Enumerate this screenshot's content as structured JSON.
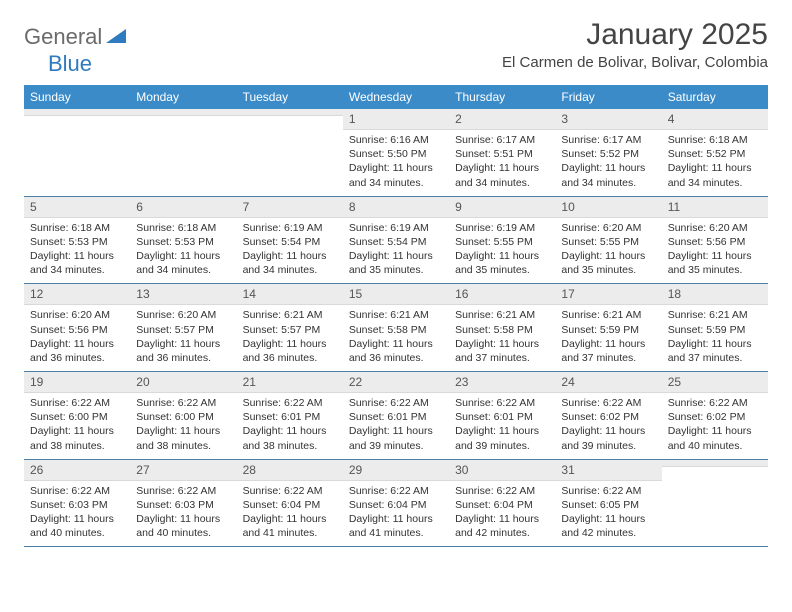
{
  "logo": {
    "part1": "General",
    "part2": "Blue"
  },
  "title": "January 2025",
  "location": "El Carmen de Bolivar, Bolivar, Colombia",
  "colors": {
    "header_bg": "#3b8bc9",
    "header_text": "#ffffff",
    "daynum_bg": "#ececec",
    "border": "#4a7fa8",
    "logo_gray": "#6b6b6b",
    "logo_blue": "#2f7bbf"
  },
  "day_headers": [
    "Sunday",
    "Monday",
    "Tuesday",
    "Wednesday",
    "Thursday",
    "Friday",
    "Saturday"
  ],
  "weeks": [
    [
      {
        "n": "",
        "sr": "",
        "ss": "",
        "dl": ""
      },
      {
        "n": "",
        "sr": "",
        "ss": "",
        "dl": ""
      },
      {
        "n": "",
        "sr": "",
        "ss": "",
        "dl": ""
      },
      {
        "n": "1",
        "sr": "6:16 AM",
        "ss": "5:50 PM",
        "dl": "11 hours and 34 minutes."
      },
      {
        "n": "2",
        "sr": "6:17 AM",
        "ss": "5:51 PM",
        "dl": "11 hours and 34 minutes."
      },
      {
        "n": "3",
        "sr": "6:17 AM",
        "ss": "5:52 PM",
        "dl": "11 hours and 34 minutes."
      },
      {
        "n": "4",
        "sr": "6:18 AM",
        "ss": "5:52 PM",
        "dl": "11 hours and 34 minutes."
      }
    ],
    [
      {
        "n": "5",
        "sr": "6:18 AM",
        "ss": "5:53 PM",
        "dl": "11 hours and 34 minutes."
      },
      {
        "n": "6",
        "sr": "6:18 AM",
        "ss": "5:53 PM",
        "dl": "11 hours and 34 minutes."
      },
      {
        "n": "7",
        "sr": "6:19 AM",
        "ss": "5:54 PM",
        "dl": "11 hours and 34 minutes."
      },
      {
        "n": "8",
        "sr": "6:19 AM",
        "ss": "5:54 PM",
        "dl": "11 hours and 35 minutes."
      },
      {
        "n": "9",
        "sr": "6:19 AM",
        "ss": "5:55 PM",
        "dl": "11 hours and 35 minutes."
      },
      {
        "n": "10",
        "sr": "6:20 AM",
        "ss": "5:55 PM",
        "dl": "11 hours and 35 minutes."
      },
      {
        "n": "11",
        "sr": "6:20 AM",
        "ss": "5:56 PM",
        "dl": "11 hours and 35 minutes."
      }
    ],
    [
      {
        "n": "12",
        "sr": "6:20 AM",
        "ss": "5:56 PM",
        "dl": "11 hours and 36 minutes."
      },
      {
        "n": "13",
        "sr": "6:20 AM",
        "ss": "5:57 PM",
        "dl": "11 hours and 36 minutes."
      },
      {
        "n": "14",
        "sr": "6:21 AM",
        "ss": "5:57 PM",
        "dl": "11 hours and 36 minutes."
      },
      {
        "n": "15",
        "sr": "6:21 AM",
        "ss": "5:58 PM",
        "dl": "11 hours and 36 minutes."
      },
      {
        "n": "16",
        "sr": "6:21 AM",
        "ss": "5:58 PM",
        "dl": "11 hours and 37 minutes."
      },
      {
        "n": "17",
        "sr": "6:21 AM",
        "ss": "5:59 PM",
        "dl": "11 hours and 37 minutes."
      },
      {
        "n": "18",
        "sr": "6:21 AM",
        "ss": "5:59 PM",
        "dl": "11 hours and 37 minutes."
      }
    ],
    [
      {
        "n": "19",
        "sr": "6:22 AM",
        "ss": "6:00 PM",
        "dl": "11 hours and 38 minutes."
      },
      {
        "n": "20",
        "sr": "6:22 AM",
        "ss": "6:00 PM",
        "dl": "11 hours and 38 minutes."
      },
      {
        "n": "21",
        "sr": "6:22 AM",
        "ss": "6:01 PM",
        "dl": "11 hours and 38 minutes."
      },
      {
        "n": "22",
        "sr": "6:22 AM",
        "ss": "6:01 PM",
        "dl": "11 hours and 39 minutes."
      },
      {
        "n": "23",
        "sr": "6:22 AM",
        "ss": "6:01 PM",
        "dl": "11 hours and 39 minutes."
      },
      {
        "n": "24",
        "sr": "6:22 AM",
        "ss": "6:02 PM",
        "dl": "11 hours and 39 minutes."
      },
      {
        "n": "25",
        "sr": "6:22 AM",
        "ss": "6:02 PM",
        "dl": "11 hours and 40 minutes."
      }
    ],
    [
      {
        "n": "26",
        "sr": "6:22 AM",
        "ss": "6:03 PM",
        "dl": "11 hours and 40 minutes."
      },
      {
        "n": "27",
        "sr": "6:22 AM",
        "ss": "6:03 PM",
        "dl": "11 hours and 40 minutes."
      },
      {
        "n": "28",
        "sr": "6:22 AM",
        "ss": "6:04 PM",
        "dl": "11 hours and 41 minutes."
      },
      {
        "n": "29",
        "sr": "6:22 AM",
        "ss": "6:04 PM",
        "dl": "11 hours and 41 minutes."
      },
      {
        "n": "30",
        "sr": "6:22 AM",
        "ss": "6:04 PM",
        "dl": "11 hours and 42 minutes."
      },
      {
        "n": "31",
        "sr": "6:22 AM",
        "ss": "6:05 PM",
        "dl": "11 hours and 42 minutes."
      },
      {
        "n": "",
        "sr": "",
        "ss": "",
        "dl": ""
      }
    ]
  ],
  "labels": {
    "sunrise": "Sunrise:",
    "sunset": "Sunset:",
    "daylight": "Daylight:"
  }
}
